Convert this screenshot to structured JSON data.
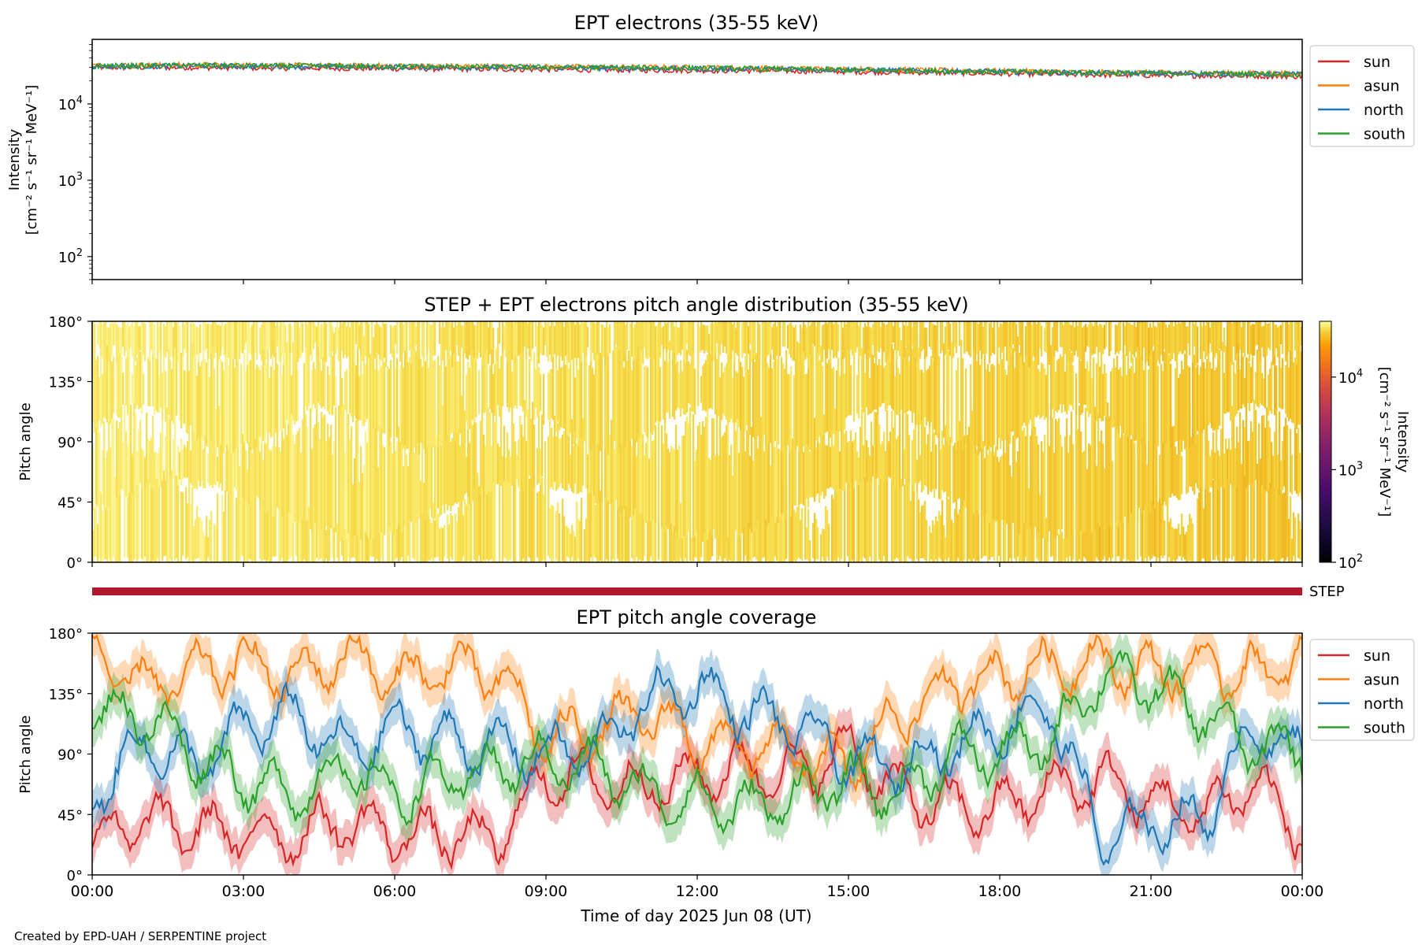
{
  "footer": "Created by EPD-UAH / SERPENTINE project",
  "chart_data": [
    {
      "type": "line",
      "title": "EPT electrons (35-55 keV)",
      "ylabel_line1": "Intensity",
      "ylabel_line2": "[cm⁻² s⁻¹ sr⁻¹ MeV⁻¹]",
      "yscale": "log",
      "ylim": [
        50,
        70000
      ],
      "yticks": [
        {
          "value": 100,
          "base": "10",
          "exp": "2"
        },
        {
          "value": 1000,
          "base": "10",
          "exp": "3"
        },
        {
          "value": 10000,
          "base": "10",
          "exp": "4"
        }
      ],
      "x_unit": "hours of 2025 Jun 08 (UT)",
      "xlim": [
        0,
        24
      ],
      "legend_position": "outside top-right",
      "series": [
        {
          "name": "sun",
          "color": "#d62728",
          "x": [
            0,
            2,
            4,
            6,
            8,
            10,
            12,
            14,
            16,
            18,
            20,
            22,
            24
          ],
          "values": [
            30000,
            30000,
            29500,
            29000,
            28500,
            28000,
            27500,
            27000,
            26000,
            25000,
            24000,
            23500,
            23000
          ]
        },
        {
          "name": "asun",
          "color": "#ff7f0e",
          "x": [
            0,
            2,
            4,
            6,
            8,
            10,
            12,
            14,
            16,
            18,
            20,
            22,
            24
          ],
          "values": [
            32000,
            32500,
            32000,
            31500,
            31000,
            30500,
            30000,
            29000,
            28000,
            27000,
            26000,
            25500,
            25000
          ]
        },
        {
          "name": "north",
          "color": "#1f77b4",
          "x": [
            0,
            2,
            4,
            6,
            8,
            10,
            12,
            14,
            16,
            18,
            20,
            22,
            24
          ],
          "values": [
            31000,
            31500,
            31000,
            30500,
            30000,
            29500,
            29000,
            28500,
            27500,
            26500,
            25500,
            25000,
            24500
          ]
        },
        {
          "name": "south",
          "color": "#2ca02c",
          "x": [
            0,
            2,
            4,
            6,
            8,
            10,
            12,
            14,
            16,
            18,
            20,
            22,
            24
          ],
          "values": [
            31500,
            32000,
            31500,
            31000,
            30500,
            30000,
            29500,
            28500,
            27500,
            26500,
            25500,
            25000,
            24500
          ]
        }
      ]
    },
    {
      "type": "heatmap",
      "title": "STEP + EPT electrons pitch angle distribution (35-55 keV)",
      "ylabel": "Pitch angle",
      "ylim": [
        0,
        180
      ],
      "yticks": [
        "0°",
        "45°",
        "90°",
        "135°",
        "180°"
      ],
      "xlim": [
        0,
        24
      ],
      "colormap": "inferno",
      "colorbar": {
        "scale": "log",
        "range": [
          100,
          40000
        ],
        "ticks": [
          {
            "value": 100,
            "base": "10",
            "exp": "2"
          },
          {
            "value": 1000,
            "base": "10",
            "exp": "3"
          },
          {
            "value": 10000,
            "base": "10",
            "exp": "4"
          }
        ],
        "label_line1": "Intensity",
        "label_line2": "[cm⁻² s⁻¹ sr⁻¹ MeV⁻¹]"
      }
    },
    {
      "type": "bar",
      "label": "STEP",
      "color": "#b2182b",
      "xrange": [
        0,
        24
      ]
    },
    {
      "type": "line",
      "title": "EPT pitch angle coverage",
      "ylabel": "Pitch angle",
      "ylim": [
        0,
        180
      ],
      "yticks": [
        "0°",
        "45°",
        "90°",
        "135°",
        "180°"
      ],
      "xlabel": "Time of day 2025 Jun 08 (UT)",
      "xlim": [
        0,
        24
      ],
      "xticks": [
        "00:00",
        "03:00",
        "06:00",
        "09:00",
        "12:00",
        "15:00",
        "18:00",
        "21:00",
        "00:00"
      ],
      "legend_position": "outside top-right",
      "series": [
        {
          "name": "sun",
          "color": "#d62728",
          "x": [
            0,
            1,
            2,
            3,
            4,
            5,
            6,
            7,
            8,
            9,
            10,
            11,
            12,
            13,
            14,
            15,
            16,
            17,
            18,
            19,
            20,
            21,
            22,
            23,
            24
          ],
          "values": [
            25,
            40,
            35,
            30,
            30,
            40,
            30,
            30,
            25,
            75,
            70,
            65,
            75,
            80,
            75,
            95,
            60,
            50,
            50,
            65,
            70,
            55,
            45,
            70,
            30
          ]
        },
        {
          "name": "asun",
          "color": "#ff7f0e",
          "x": [
            0,
            1,
            2,
            3,
            4,
            5,
            6,
            7,
            8,
            9,
            10,
            11,
            12,
            13,
            14,
            15,
            16,
            17,
            18,
            19,
            20,
            21,
            22,
            23,
            24
          ],
          "values": [
            165,
            140,
            150,
            160,
            145,
            165,
            145,
            155,
            150,
            100,
            110,
            120,
            100,
            95,
            90,
            80,
            120,
            140,
            150,
            155,
            160,
            150,
            155,
            150,
            160
          ]
        },
        {
          "name": "north",
          "color": "#1f77b4",
          "x": [
            0,
            1,
            2,
            3,
            4,
            5,
            6,
            7,
            8,
            9,
            10,
            11,
            12,
            13,
            14,
            15,
            16,
            17,
            18,
            19,
            20,
            21,
            22,
            23,
            24
          ],
          "values": [
            60,
            100,
            80,
            110,
            120,
            90,
            110,
            100,
            95,
            90,
            95,
            130,
            140,
            120,
            110,
            85,
            80,
            95,
            110,
            125,
            25,
            40,
            40,
            110,
            90
          ]
        },
        {
          "name": "south",
          "color": "#2ca02c",
          "x": [
            0,
            1,
            2,
            3,
            4,
            5,
            6,
            7,
            8,
            9,
            10,
            11,
            12,
            13,
            14,
            15,
            16,
            17,
            18,
            19,
            20,
            21,
            22,
            23,
            24
          ],
          "values": [
            120,
            120,
            90,
            70,
            60,
            80,
            60,
            70,
            80,
            85,
            80,
            60,
            55,
            50,
            60,
            70,
            60,
            90,
            90,
            100,
            150,
            140,
            120,
            95,
            95
          ]
        }
      ]
    }
  ]
}
